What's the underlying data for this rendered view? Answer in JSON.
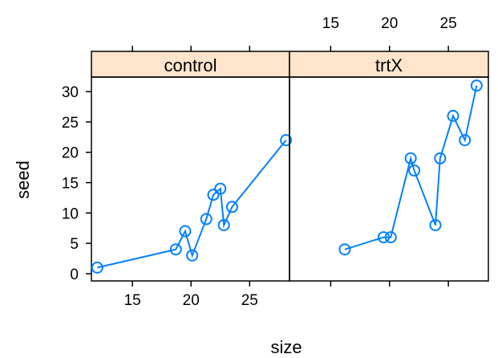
{
  "colors": {
    "series": "#0080ff",
    "strip": "#ffe5cc",
    "frame": "#000000"
  },
  "chart_data": {
    "type": "line",
    "xlabel": "size",
    "ylabel": "seed",
    "xlim": [
      11.5,
      28.4
    ],
    "ylim": [
      -1.2,
      32.4
    ],
    "x_ticks": [
      15,
      20,
      25
    ],
    "y_ticks": [
      0,
      5,
      10,
      15,
      20,
      25,
      30
    ],
    "panels": [
      {
        "name": "control",
        "x": [
          12,
          18.7,
          19.5,
          20.1,
          21.3,
          21.9,
          22.5,
          22.8,
          23.5,
          28.1
        ],
        "y": [
          1,
          4,
          7,
          3,
          9,
          13,
          14,
          8,
          11,
          22
        ]
      },
      {
        "name": "trtX",
        "x": [
          16.2,
          19.5,
          20.1,
          21.8,
          22.1,
          23.9,
          24.3,
          25.4,
          26.4,
          27.4
        ],
        "y": [
          4,
          6,
          6,
          19,
          17,
          8,
          19,
          26,
          22,
          31
        ]
      }
    ]
  }
}
